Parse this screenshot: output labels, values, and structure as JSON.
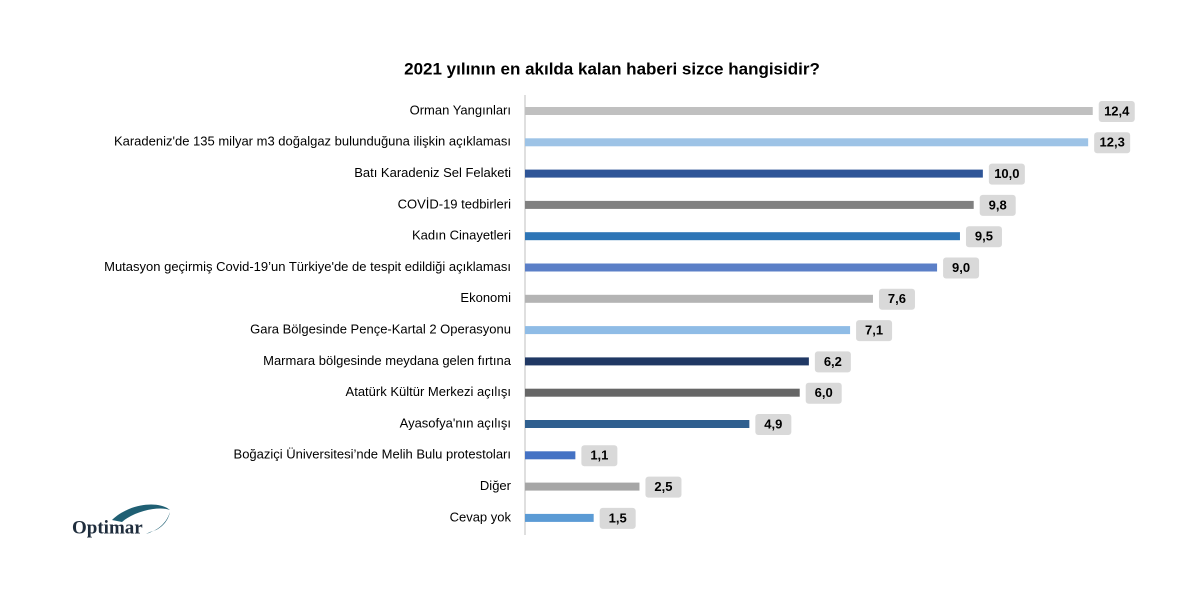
{
  "brand": "Optimar",
  "chart_data": {
    "type": "bar",
    "orientation": "horizontal",
    "title": "2021 yılının en akılda kalan haberi sizce hangisidir?",
    "categories": [
      "Orman Yangınları",
      "Karadeniz'de 135 milyar m3 doğalgaz bulunduğuna ilişkin açıklaması",
      "Batı Karadeniz Sel Felaketi",
      "COVİD-19 tedbirleri",
      "Kadın Cinayetleri",
      "Mutasyon geçirmiş Covid-19’un Türkiye'de de tespit edildiği açıklaması",
      "Ekonomi",
      "Gara Bölgesinde Pençe-Kartal 2 Operasyonu",
      "Marmara bölgesinde meydana gelen fırtına",
      "Atatürk Kültür Merkezi açılışı",
      "Ayasofya'nın açılışı",
      "Boğaziçi Üniversitesi’nde Melih Bulu protestoları",
      "Diğer",
      "Cevap yok"
    ],
    "values": [
      12.4,
      12.3,
      10.0,
      9.8,
      9.5,
      9.0,
      7.6,
      7.1,
      6.2,
      6.0,
      4.9,
      1.1,
      2.5,
      1.5
    ],
    "value_labels": [
      "12,4",
      "12,3",
      "10,0",
      "9,8",
      "9,5",
      "9,0",
      "7,6",
      "7,1",
      "6,2",
      "6,0",
      "4,9",
      "1,1",
      "2,5",
      "1,5"
    ],
    "colors": [
      "#c0c0c0",
      "#9dc3e6",
      "#2f5597",
      "#808080",
      "#2e75b6",
      "#5b7fc7",
      "#b4b4b4",
      "#8fbce6",
      "#203864",
      "#666666",
      "#2f5f8f",
      "#4472c4",
      "#a6a6a6",
      "#5b9bd5"
    ],
    "xlim": [
      0,
      14
    ]
  }
}
